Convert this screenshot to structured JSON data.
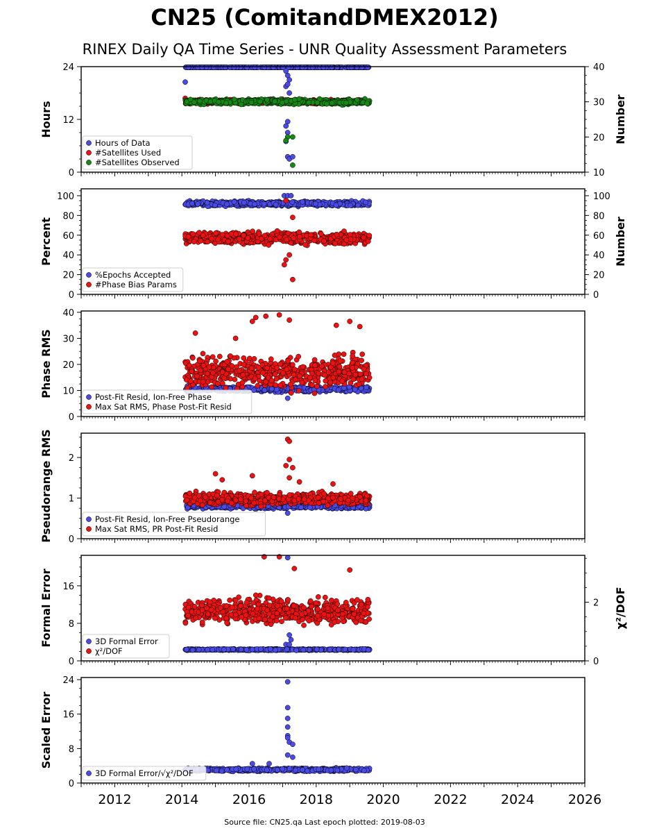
{
  "title": "CN25 (ComitandDMEX2012)",
  "subtitle": "RINEX Daily QA Time Series - UNR Quality Assessment Parameters",
  "source_note": "Source file: CN25.qa Last epoch plotted: 2019-08-03",
  "colors": {
    "blue": "#4a4ae6",
    "red": "#ee1111",
    "green": "#138a13",
    "edge": "#000000"
  },
  "chart_data": [
    {
      "type": "scatter",
      "ylabel": "Hours",
      "ylabel_right": "Number",
      "ylim": [
        0,
        24
      ],
      "yticks": [
        0,
        12,
        24
      ],
      "ylim_right": [
        10,
        40
      ],
      "yticks_right": [
        10,
        20,
        30,
        40
      ],
      "xlim": [
        2011,
        2026
      ],
      "xticks": [
        2012,
        2014,
        2016,
        2018,
        2020,
        2022,
        2024,
        2026
      ],
      "legend": [
        "Hours of Data",
        "#Satellites Used",
        "#Satellites Observed"
      ],
      "legend_position": "lower-left",
      "series": [
        {
          "name": "Hours of Data",
          "color": "blue",
          "axis": "left",
          "x_range": [
            2014.1,
            2019.59
          ],
          "base": 24.0,
          "noise": 0.1,
          "points": [
            [
              2014.1,
              20.5
            ],
            [
              2017.1,
              23.0
            ],
            [
              2017.15,
              22.0
            ],
            [
              2017.2,
              21.0
            ],
            [
              2017.1,
              19.5
            ],
            [
              2017.15,
              20.0
            ],
            [
              2017.2,
              18.0
            ],
            [
              2017.15,
              11.5
            ],
            [
              2017.1,
              10.5
            ],
            [
              2017.15,
              9.0
            ],
            [
              2017.1,
              7.0
            ],
            [
              2017.15,
              3.5
            ],
            [
              2017.2,
              3.0
            ],
            [
              2017.3,
              3.5
            ]
          ]
        },
        {
          "name": "#Satellites Used",
          "color": "red",
          "axis": "right",
          "x_range": [
            2014.1,
            2019.59
          ],
          "base": 30.0,
          "noise": 0.5,
          "points": [
            [
              2014.1,
              31.0
            ]
          ]
        },
        {
          "name": "#Satellites Observed",
          "color": "green",
          "axis": "right",
          "x_range": [
            2014.1,
            2019.59
          ],
          "base": 30.0,
          "noise": 0.6,
          "points": [
            [
              2017.15,
              20.0
            ],
            [
              2017.1,
              19.0
            ],
            [
              2017.3,
              20.0
            ],
            [
              2017.3,
              12.0
            ]
          ]
        }
      ]
    },
    {
      "type": "scatter",
      "ylabel": "Percent",
      "ylabel_right": "Number",
      "ylim": [
        0,
        107
      ],
      "yticks": [
        0,
        20,
        40,
        60,
        80,
        100
      ],
      "ylim_right": [
        0,
        107
      ],
      "yticks_right": [
        0,
        20,
        40,
        60,
        80,
        100
      ],
      "xlim": [
        2011,
        2026
      ],
      "legend": [
        "%Epochs Accepted",
        "#Phase Bias Params"
      ],
      "legend_position": "lower-left",
      "series": [
        {
          "name": "%Epochs Accepted",
          "color": "blue",
          "axis": "left",
          "x_range": [
            2014.1,
            2019.59
          ],
          "base": 92.0,
          "noise": 2.0,
          "points": [
            [
              2017.05,
              100
            ],
            [
              2017.15,
              100
            ],
            [
              2017.25,
              100
            ]
          ]
        },
        {
          "name": "#Phase Bias Params",
          "color": "red",
          "axis": "left",
          "x_range": [
            2014.1,
            2019.59
          ],
          "base": 57.0,
          "noise": 5.0,
          "points": [
            [
              2017.1,
              95
            ],
            [
              2017.05,
              30
            ],
            [
              2017.1,
              35
            ],
            [
              2017.2,
              40
            ],
            [
              2017.3,
              15
            ],
            [
              2017.3,
              78
            ]
          ]
        }
      ]
    },
    {
      "type": "scatter",
      "ylabel": "Phase RMS",
      "ylim": [
        0,
        40.5
      ],
      "yticks": [
        0,
        10,
        20,
        30,
        40
      ],
      "xlim": [
        2011,
        2026
      ],
      "legend": [
        "Post-Fit Resid, Ion-Free Phase",
        "Max Sat RMS, Phase Post-Fit Resid"
      ],
      "legend_position": "lower-left",
      "series": [
        {
          "name": "Post-Fit Resid, Ion-Free Phase",
          "color": "blue",
          "axis": "left",
          "x_range": [
            2014.1,
            2019.59
          ],
          "base": 10.5,
          "noise": 0.8,
          "points": [
            [
              2017.15,
              7.0
            ]
          ]
        },
        {
          "name": "Max Sat RMS, Phase Post-Fit Resid",
          "color": "red",
          "axis": "left",
          "x_range": [
            2014.1,
            2019.59
          ],
          "base": 17.0,
          "noise": 5.0,
          "points": [
            [
              2014.4,
              32
            ],
            [
              2016.1,
              36.5
            ],
            [
              2016.2,
              38
            ],
            [
              2016.5,
              38.5
            ],
            [
              2016.9,
              39
            ],
            [
              2017.2,
              37
            ],
            [
              2018.6,
              35
            ],
            [
              2019.0,
              36.5
            ],
            [
              2019.3,
              34.5
            ],
            [
              2015.6,
              30
            ]
          ]
        }
      ]
    },
    {
      "type": "scatter",
      "ylabel": "Pseudorange RMS",
      "ylim": [
        0,
        2.6
      ],
      "yticks": [
        0,
        1,
        2
      ],
      "xlim": [
        2011,
        2026
      ],
      "legend": [
        "Post-Fit Resid, Ion-Free Pseudorange",
        "Max Sat RMS, PR Post-Fit Resid"
      ],
      "legend_position": "lower-left",
      "series": [
        {
          "name": "Post-Fit Resid, Ion-Free Pseudorange",
          "color": "blue",
          "axis": "left",
          "x_range": [
            2014.1,
            2019.59
          ],
          "base": 0.8,
          "noise": 0.05,
          "points": [
            [
              2017.15,
              0.63
            ]
          ]
        },
        {
          "name": "Max Sat RMS, PR Post-Fit Resid",
          "color": "red",
          "axis": "left",
          "x_range": [
            2014.1,
            2019.59
          ],
          "base": 0.98,
          "noise": 0.12,
          "points": [
            [
              2017.15,
              2.45
            ],
            [
              2017.2,
              2.4
            ],
            [
              2017.2,
              1.95
            ],
            [
              2017.1,
              1.8
            ],
            [
              2017.3,
              1.75
            ],
            [
              2017.2,
              1.5
            ],
            [
              2015.0,
              1.6
            ],
            [
              2016.1,
              1.55
            ],
            [
              2017.5,
              1.4
            ],
            [
              2018.5,
              1.35
            ],
            [
              2015.2,
              1.45
            ]
          ]
        }
      ]
    },
    {
      "type": "scatter",
      "ylabel": "Formal Error",
      "ylabel_right": "χ²/DOF",
      "ylim": [
        0,
        22.5
      ],
      "yticks": [
        0,
        8,
        16
      ],
      "ylim_right": [
        0,
        3.6
      ],
      "yticks_right": [
        0,
        2
      ],
      "xlim": [
        2011,
        2026
      ],
      "legend": [
        "3D Formal Error",
        "χ²/DOF"
      ],
      "legend_position": "lower-left",
      "series": [
        {
          "name": "3D Formal Error",
          "color": "blue",
          "axis": "left",
          "x_range": [
            2014.1,
            2019.59
          ],
          "base": 2.4,
          "noise": 0.12,
          "points": [
            [
              2017.15,
              22.0
            ],
            [
              2017.15,
              13.0
            ],
            [
              2017.2,
              5.5
            ],
            [
              2017.25,
              4.5
            ],
            [
              2017.1,
              3.5
            ],
            [
              2017.2,
              3.5
            ]
          ]
        },
        {
          "name": "χ²/DOF",
          "color": "red",
          "axis": "right",
          "x_range": [
            2014.1,
            2019.59
          ],
          "base": 1.7,
          "noise": 0.35,
          "points": [
            [
              2016.45,
              3.55
            ],
            [
              2016.9,
              3.55
            ],
            [
              2017.35,
              3.15
            ],
            [
              2019.0,
              3.1
            ]
          ]
        }
      ]
    },
    {
      "type": "scatter",
      "ylabel": "Scaled Error",
      "ylim": [
        0,
        24.5
      ],
      "yticks": [
        0,
        8,
        16,
        24
      ],
      "xlim": [
        2011,
        2026
      ],
      "xticks": [
        2012,
        2014,
        2016,
        2018,
        2020,
        2022,
        2024,
        2026
      ],
      "legend": [
        "3D Formal Error/√χ²/DOF"
      ],
      "legend_position": "lower-left",
      "series": [
        {
          "name": "3D Formal Error/√χ²/DOF",
          "color": "blue",
          "axis": "left",
          "x_range": [
            2014.1,
            2019.59
          ],
          "base": 3.1,
          "noise": 0.3,
          "points": [
            [
              2017.15,
              23.5
            ],
            [
              2017.15,
              17.5
            ],
            [
              2017.15,
              15.0
            ],
            [
              2017.15,
              13.0
            ],
            [
              2017.15,
              11.0
            ],
            [
              2017.15,
              10.5
            ],
            [
              2017.2,
              9.5
            ],
            [
              2017.3,
              9.0
            ],
            [
              2017.15,
              6.5
            ],
            [
              2017.3,
              6.0
            ],
            [
              2016.1,
              4.5
            ],
            [
              2016.6,
              4.5
            ]
          ]
        }
      ]
    }
  ]
}
